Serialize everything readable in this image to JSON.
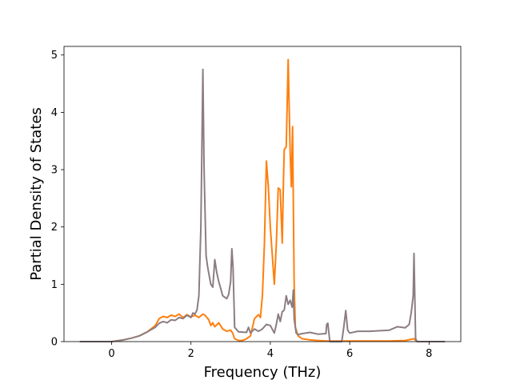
{
  "chart_data": {
    "type": "line",
    "title": "",
    "xlabel": "Frequency (THz)",
    "ylabel": "Partial Density of States",
    "xlim": [
      -1.2,
      8.8
    ],
    "ylim": [
      0,
      5.15
    ],
    "xticks": [
      0,
      2,
      4,
      6,
      8
    ],
    "yticks": [
      0,
      1,
      2,
      3,
      4,
      5
    ],
    "grid": false,
    "legend": "none",
    "series": [
      {
        "color": "#ff7f0e",
        "x": [
          -0.8,
          0.0,
          0.3,
          0.5,
          0.7,
          0.9,
          1.1,
          1.2,
          1.3,
          1.4,
          1.5,
          1.6,
          1.7,
          1.8,
          1.9,
          2.0,
          2.1,
          2.2,
          2.3,
          2.35,
          2.4,
          2.45,
          2.5,
          2.55,
          2.6,
          2.7,
          2.8,
          2.9,
          3.0,
          3.05,
          3.1,
          3.2,
          3.3,
          3.4,
          3.5,
          3.6,
          3.7,
          3.75,
          3.8,
          3.85,
          3.9,
          3.95,
          4.0,
          4.05,
          4.1,
          4.15,
          4.2,
          4.25,
          4.3,
          4.33,
          4.35,
          4.4,
          4.45,
          4.5,
          4.53,
          4.56,
          4.6,
          4.63,
          4.7,
          4.8,
          5.0,
          5.2,
          5.4,
          5.5,
          5.8,
          6.0,
          6.5,
          7.0,
          7.4,
          7.55,
          7.62,
          7.66,
          7.7,
          8.4
        ],
        "y": [
          0.0,
          0.0,
          0.03,
          0.06,
          0.1,
          0.17,
          0.28,
          0.4,
          0.44,
          0.42,
          0.46,
          0.44,
          0.48,
          0.42,
          0.47,
          0.43,
          0.46,
          0.42,
          0.48,
          0.46,
          0.42,
          0.38,
          0.28,
          0.33,
          0.26,
          0.33,
          0.22,
          0.18,
          0.2,
          0.15,
          0.05,
          0.02,
          0.02,
          0.05,
          0.1,
          0.4,
          0.47,
          0.42,
          0.8,
          1.7,
          3.15,
          2.7,
          2.0,
          1.5,
          1.0,
          1.7,
          2.68,
          2.65,
          1.72,
          2.8,
          3.35,
          3.4,
          4.92,
          3.3,
          2.7,
          3.75,
          1.0,
          0.25,
          0.1,
          0.05,
          0.03,
          0.02,
          0.01,
          0.01,
          0.01,
          0.01,
          0.01,
          0.01,
          0.02,
          0.04,
          0.05,
          0.02,
          0.0,
          0.0
        ]
      },
      {
        "color": "#8c7d81",
        "x": [
          -0.8,
          0.0,
          0.3,
          0.5,
          0.7,
          0.9,
          1.1,
          1.2,
          1.3,
          1.4,
          1.5,
          1.6,
          1.7,
          1.8,
          1.9,
          2.0,
          2.05,
          2.1,
          2.15,
          2.2,
          2.25,
          2.3,
          2.33,
          2.38,
          2.42,
          2.5,
          2.55,
          2.6,
          2.65,
          2.7,
          2.8,
          2.9,
          2.95,
          3.0,
          3.03,
          3.06,
          3.1,
          3.2,
          3.4,
          3.45,
          3.5,
          3.6,
          3.7,
          3.8,
          3.9,
          4.0,
          4.1,
          4.15,
          4.2,
          4.25,
          4.3,
          4.35,
          4.4,
          4.45,
          4.5,
          4.55,
          4.58,
          4.6,
          4.65,
          4.7,
          4.8,
          5.0,
          5.2,
          5.4,
          5.42,
          5.45,
          5.5,
          5.52,
          5.8,
          5.85,
          5.9,
          5.95,
          6.0,
          6.2,
          6.5,
          7.0,
          7.2,
          7.4,
          7.5,
          7.55,
          7.6,
          7.62,
          7.66,
          7.7,
          8.4
        ],
        "y": [
          0.0,
          0.0,
          0.03,
          0.06,
          0.1,
          0.17,
          0.25,
          0.32,
          0.35,
          0.33,
          0.38,
          0.37,
          0.42,
          0.4,
          0.46,
          0.42,
          0.5,
          0.48,
          0.55,
          0.8,
          2.0,
          4.75,
          3.0,
          1.5,
          1.3,
          1.0,
          0.95,
          1.43,
          1.2,
          1.05,
          0.8,
          0.75,
          0.82,
          1.05,
          1.62,
          1.3,
          0.25,
          0.17,
          0.16,
          0.25,
          0.15,
          0.22,
          0.18,
          0.22,
          0.3,
          0.28,
          0.15,
          0.3,
          0.48,
          0.35,
          0.52,
          0.55,
          0.8,
          0.65,
          0.72,
          0.6,
          0.9,
          0.4,
          0.15,
          0.12,
          0.14,
          0.16,
          0.13,
          0.14,
          0.3,
          0.32,
          0.0,
          0.0,
          0.0,
          0.25,
          0.54,
          0.2,
          0.15,
          0.18,
          0.18,
          0.2,
          0.26,
          0.24,
          0.3,
          0.5,
          0.8,
          1.54,
          0.05,
          0.0,
          0.0
        ]
      }
    ]
  }
}
